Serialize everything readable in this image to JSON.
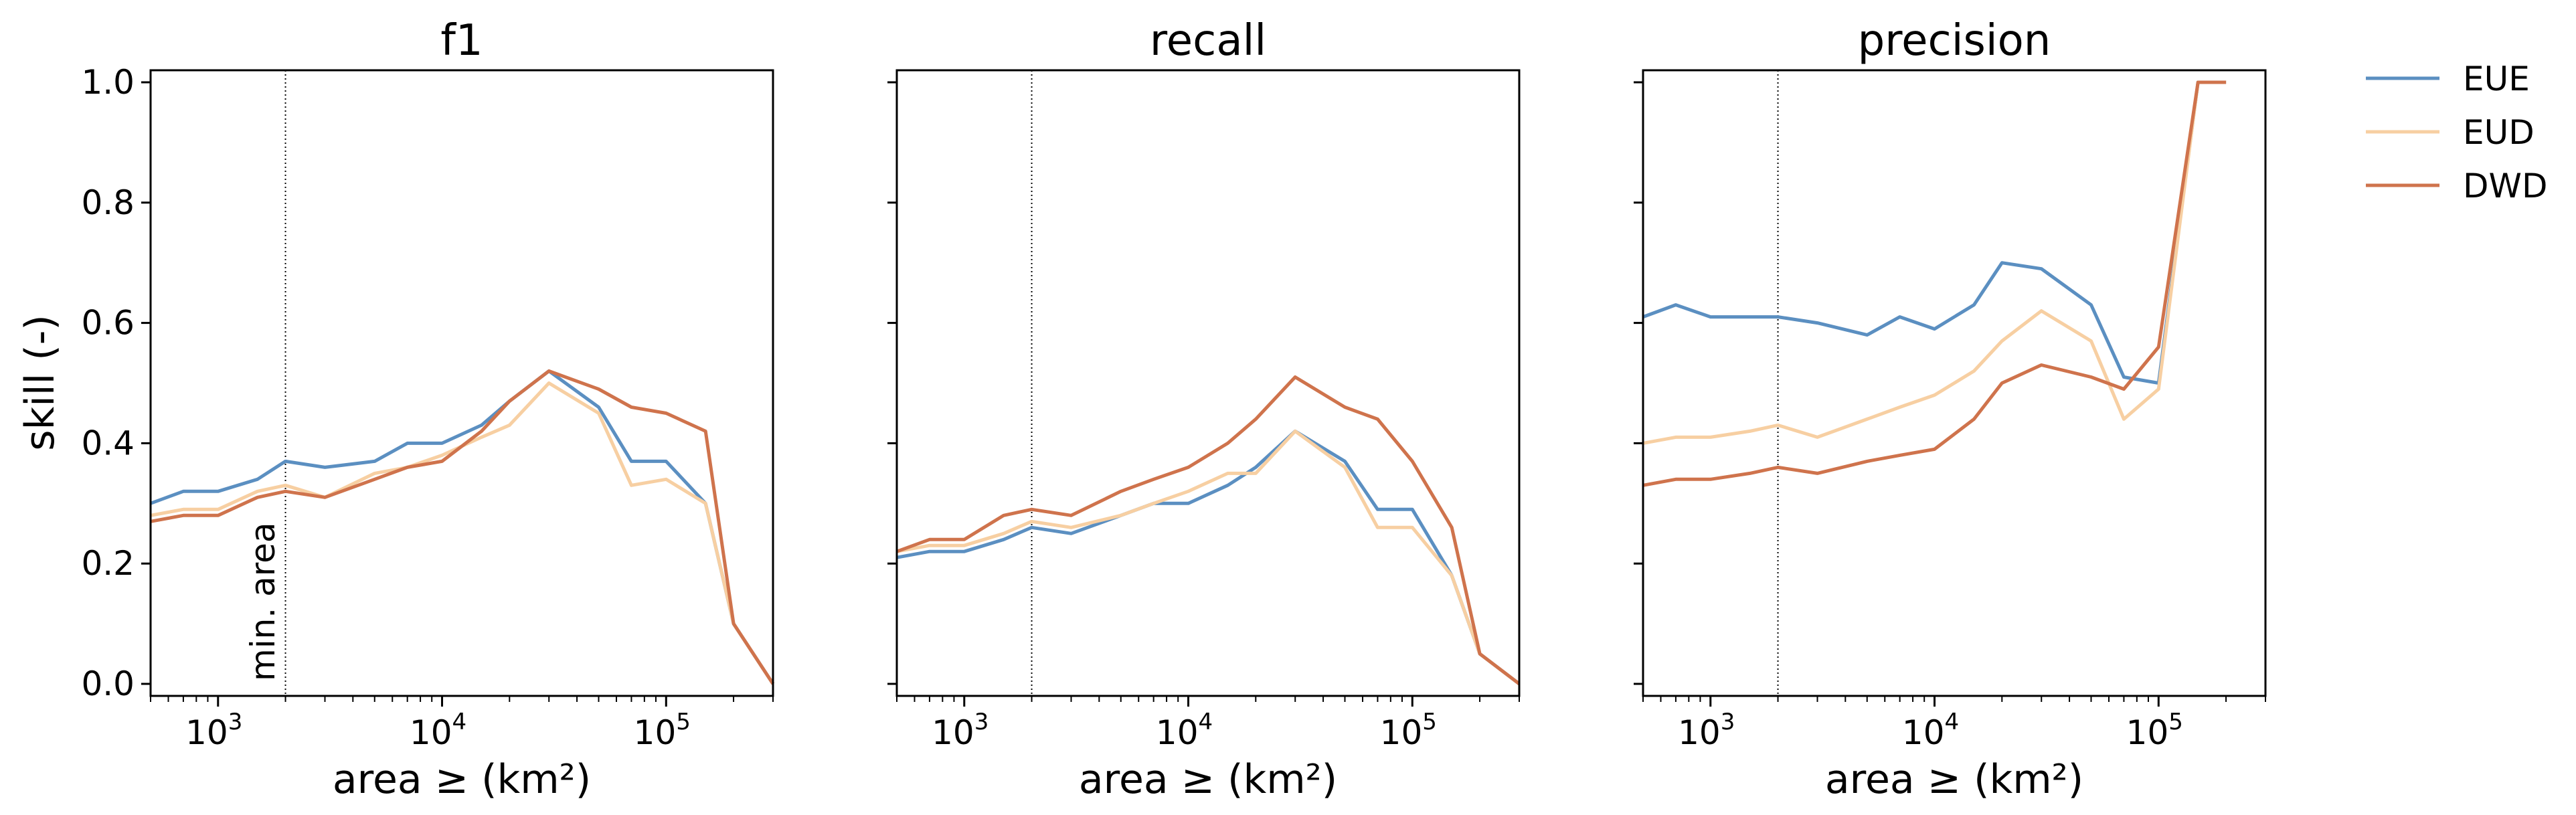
{
  "figure": {
    "ylabel": "skill (-)",
    "annotation": "min. area"
  },
  "colors": {
    "EUE": "#5b8fc1",
    "EUD": "#f7cfa2",
    "DWD": "#cf734c"
  },
  "chart_data": [
    {
      "type": "line",
      "title": "f1",
      "xlabel": "area ≥ (km²)",
      "ylabel": "skill (-)",
      "xscale": "log",
      "xlim": [
        500,
        300000
      ],
      "ylim": [
        -0.02,
        1.02
      ],
      "yticks": [
        "0.0",
        "0.2",
        "0.4",
        "0.6",
        "0.8",
        "1.0"
      ],
      "xticks": [
        {
          "base": "10",
          "exp": "3"
        },
        {
          "base": "10",
          "exp": "4"
        },
        {
          "base": "10",
          "exp": "5"
        }
      ],
      "vline": 2000,
      "x": [
        500,
        700,
        1000,
        1500,
        2000,
        3000,
        5000,
        7000,
        10000,
        15000,
        20000,
        30000,
        50000,
        70000,
        100000,
        150000,
        200000,
        300000
      ],
      "series": [
        {
          "name": "EUE",
          "values": [
            0.3,
            0.32,
            0.32,
            0.34,
            0.37,
            0.36,
            0.37,
            0.4,
            0.4,
            0.43,
            0.47,
            0.52,
            0.46,
            0.37,
            0.37,
            0.3,
            0.1,
            0.0
          ]
        },
        {
          "name": "EUD",
          "values": [
            0.28,
            0.29,
            0.29,
            0.32,
            0.33,
            0.31,
            0.35,
            0.36,
            0.38,
            0.41,
            0.43,
            0.5,
            0.45,
            0.33,
            0.34,
            0.3,
            0.1,
            0.0
          ]
        },
        {
          "name": "DWD",
          "values": [
            0.27,
            0.28,
            0.28,
            0.31,
            0.32,
            0.31,
            0.34,
            0.36,
            0.37,
            0.42,
            0.47,
            0.52,
            0.49,
            0.46,
            0.45,
            0.42,
            0.1,
            0.0
          ]
        }
      ]
    },
    {
      "type": "line",
      "title": "recall",
      "xlabel": "area ≥ (km²)",
      "xscale": "log",
      "xlim": [
        500,
        300000
      ],
      "ylim": [
        -0.02,
        1.02
      ],
      "xticks": [
        {
          "base": "10",
          "exp": "3"
        },
        {
          "base": "10",
          "exp": "4"
        },
        {
          "base": "10",
          "exp": "5"
        }
      ],
      "vline": 2000,
      "x": [
        500,
        700,
        1000,
        1500,
        2000,
        3000,
        5000,
        7000,
        10000,
        15000,
        20000,
        30000,
        50000,
        70000,
        100000,
        150000,
        200000,
        300000
      ],
      "series": [
        {
          "name": "EUE",
          "values": [
            0.21,
            0.22,
            0.22,
            0.24,
            0.26,
            0.25,
            0.28,
            0.3,
            0.3,
            0.33,
            0.36,
            0.42,
            0.37,
            0.29,
            0.29,
            0.18,
            0.05,
            0.0
          ]
        },
        {
          "name": "EUD",
          "values": [
            0.22,
            0.23,
            0.23,
            0.25,
            0.27,
            0.26,
            0.28,
            0.3,
            0.32,
            0.35,
            0.35,
            0.42,
            0.36,
            0.26,
            0.26,
            0.18,
            0.05,
            0.0
          ]
        },
        {
          "name": "DWD",
          "values": [
            0.22,
            0.24,
            0.24,
            0.28,
            0.29,
            0.28,
            0.32,
            0.34,
            0.36,
            0.4,
            0.44,
            0.51,
            0.46,
            0.44,
            0.37,
            0.26,
            0.05,
            0.0
          ]
        }
      ]
    },
    {
      "type": "line",
      "title": "precision",
      "xlabel": "area ≥ (km²)",
      "xscale": "log",
      "xlim": [
        500,
        300000
      ],
      "ylim": [
        -0.02,
        1.02
      ],
      "xticks": [
        {
          "base": "10",
          "exp": "3"
        },
        {
          "base": "10",
          "exp": "4"
        },
        {
          "base": "10",
          "exp": "5"
        }
      ],
      "vline": 2000,
      "x": [
        500,
        700,
        1000,
        1500,
        2000,
        3000,
        5000,
        7000,
        10000,
        15000,
        20000,
        30000,
        50000,
        70000,
        100000,
        150000,
        200000
      ],
      "series": [
        {
          "name": "EUE",
          "values": [
            0.61,
            0.63,
            0.61,
            0.61,
            0.61,
            0.6,
            0.58,
            0.61,
            0.59,
            0.63,
            0.7,
            0.69,
            0.63,
            0.51,
            0.5,
            1.0,
            1.0
          ]
        },
        {
          "name": "EUD",
          "values": [
            0.4,
            0.41,
            0.41,
            0.42,
            0.43,
            0.41,
            0.44,
            0.46,
            0.48,
            0.52,
            0.57,
            0.62,
            0.57,
            0.44,
            0.49,
            1.0,
            1.0
          ]
        },
        {
          "name": "DWD",
          "values": [
            0.33,
            0.34,
            0.34,
            0.35,
            0.36,
            0.35,
            0.37,
            0.38,
            0.39,
            0.44,
            0.5,
            0.53,
            0.51,
            0.49,
            0.56,
            1.0,
            1.0
          ]
        }
      ]
    }
  ],
  "legend": [
    {
      "name": "EUE",
      "label": "EUE"
    },
    {
      "name": "EUD",
      "label": "EUD"
    },
    {
      "name": "DWD",
      "label": "DWD"
    }
  ]
}
